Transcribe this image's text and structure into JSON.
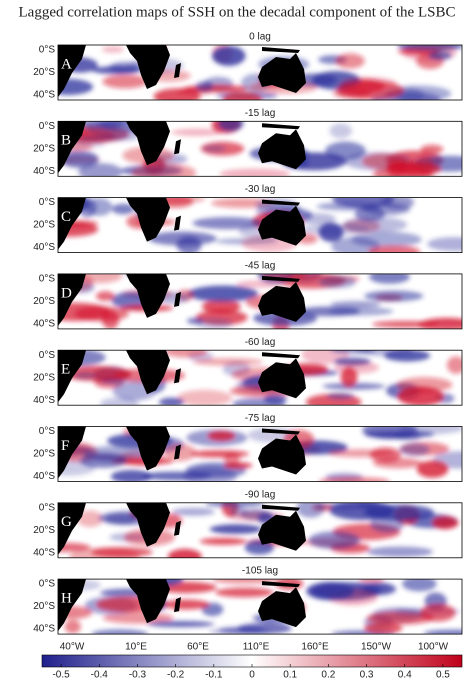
{
  "title": "Lagged correlation maps of SSH on the decadal component of the LSBC",
  "panels": [
    {
      "letter": "A",
      "label": "0 lag"
    },
    {
      "letter": "B",
      "label": "-15 lag"
    },
    {
      "letter": "C",
      "label": "-30 lag"
    },
    {
      "letter": "D",
      "label": "-45 lag"
    },
    {
      "letter": "E",
      "label": "-60 lag"
    },
    {
      "letter": "F",
      "label": "-75 lag"
    },
    {
      "letter": "G",
      "label": "-90 lag"
    },
    {
      "letter": "H",
      "label": "-105 lag"
    }
  ],
  "y_ticks": [
    "0°S",
    "20°S",
    "40°S"
  ],
  "x_ticks": [
    "40°W",
    "10°E",
    "60°E",
    "110°E",
    "160°E",
    "150°W",
    "100°W"
  ],
  "colorbar": {
    "lim": [
      -0.55,
      0.55
    ],
    "ticks": [
      -0.5,
      -0.4,
      -0.3,
      -0.2,
      -0.1,
      0,
      0.1,
      0.2,
      0.3,
      0.4,
      0.5
    ],
    "colors": [
      "#1f1f8c",
      "#ffffff",
      "#c0001a"
    ]
  }
}
